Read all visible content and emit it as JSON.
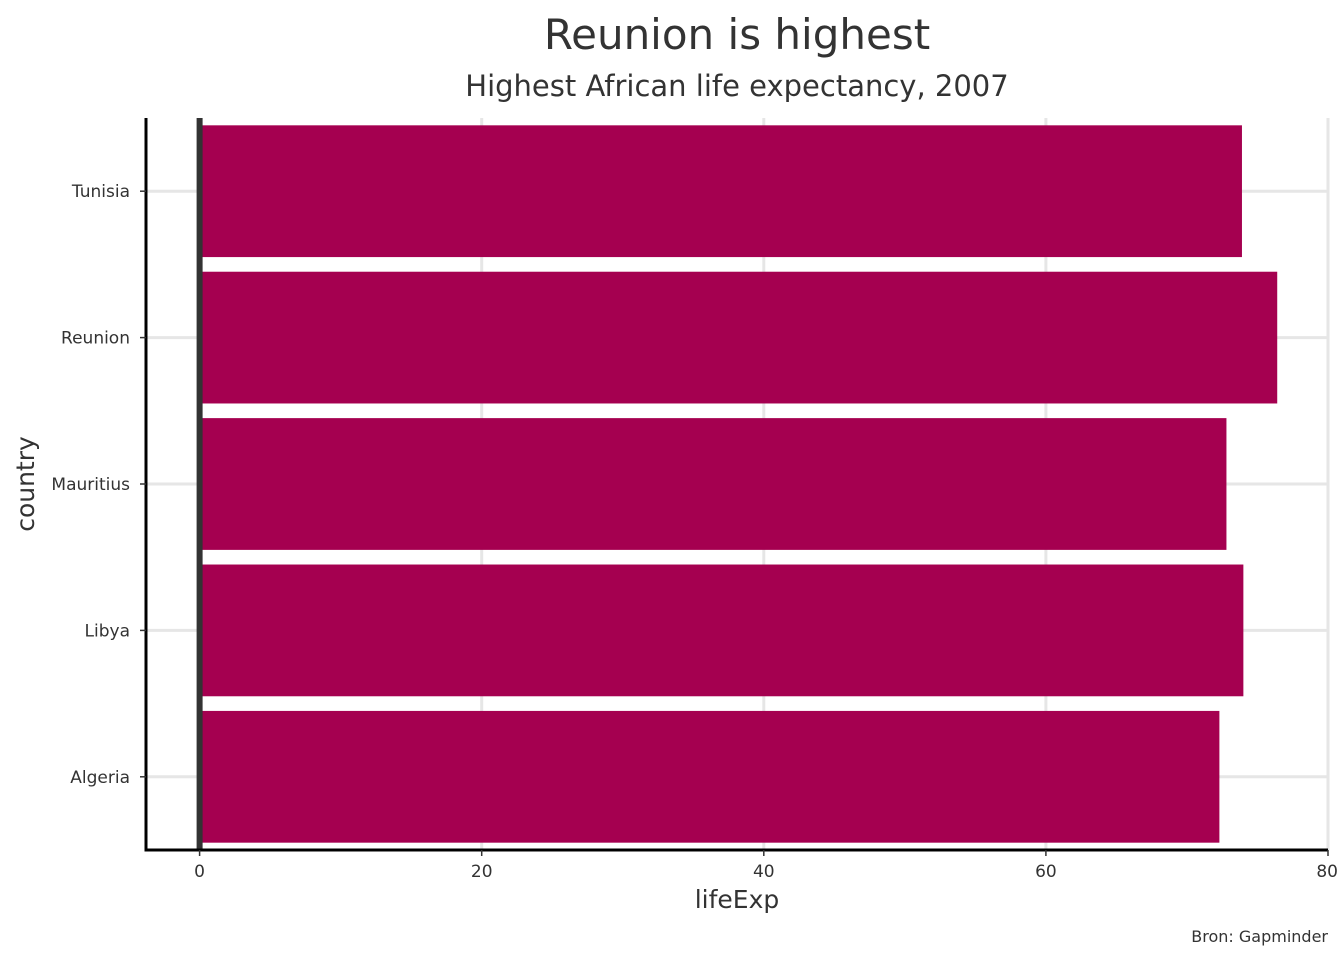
{
  "chart_data": {
    "type": "bar",
    "orientation": "horizontal",
    "title": "Reunion is highest",
    "subtitle": "Highest African life expectancy, 2007",
    "xlabel": "lifeExp",
    "ylabel": "country",
    "caption": "Bron: Gapminder",
    "categories": [
      "Tunisia",
      "Reunion",
      "Mauritius",
      "Libya",
      "Algeria"
    ],
    "values": [
      73.9,
      76.4,
      72.8,
      74.0,
      72.3
    ],
    "xlim": [
      -3.8,
      80
    ],
    "x_ticks": [
      0,
      20,
      40,
      60,
      80
    ],
    "x_tick_labels": [
      "0",
      "20",
      "40",
      "60",
      "80"
    ],
    "grid": true,
    "bar_color": "#A50050",
    "grid_color": "#E6E6E6",
    "zero_line_color": "#333333",
    "axis_color": "#000000"
  }
}
